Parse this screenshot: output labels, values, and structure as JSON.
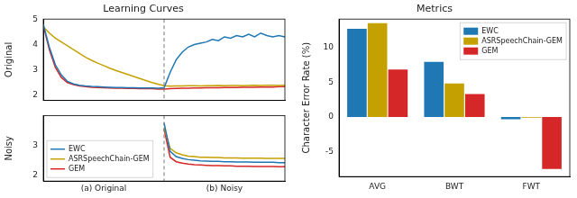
{
  "chart_data": [
    {
      "type": "line",
      "title": "Learning Curves",
      "y_label": "Original",
      "x": [
        0,
        5,
        10,
        15,
        20,
        25,
        30,
        35,
        40,
        45,
        50,
        55,
        60,
        65,
        70,
        75,
        80,
        85,
        90,
        95,
        100,
        105,
        110,
        115,
        120,
        125,
        130,
        135,
        140,
        145,
        150,
        155,
        160,
        165,
        170,
        175,
        180,
        185,
        190,
        195,
        200
      ],
      "xlim": [
        0,
        200
      ],
      "ylim": [
        1.8,
        5.0
      ],
      "yticks": [
        2,
        3,
        4,
        5
      ],
      "vline": 100,
      "tick_labels": "y",
      "grid": false,
      "series": [
        {
          "name": "EWC",
          "color": "#1f77b4",
          "values": [
            4.8,
            3.9,
            3.2,
            2.8,
            2.55,
            2.45,
            2.4,
            2.37,
            2.35,
            2.34,
            2.33,
            2.32,
            2.31,
            2.31,
            2.3,
            2.3,
            2.29,
            2.29,
            2.29,
            2.28,
            2.3,
            2.9,
            3.4,
            3.7,
            3.9,
            4.0,
            4.05,
            4.1,
            4.2,
            4.15,
            4.3,
            4.25,
            4.35,
            4.3,
            4.4,
            4.3,
            4.45,
            4.35,
            4.3,
            4.35,
            4.3
          ]
        },
        {
          "name": "ASRSpeechChain-GEM",
          "color": "#c5a100",
          "values": [
            4.7,
            4.45,
            4.25,
            4.1,
            3.95,
            3.8,
            3.65,
            3.5,
            3.38,
            3.27,
            3.17,
            3.07,
            2.98,
            2.9,
            2.82,
            2.74,
            2.66,
            2.58,
            2.5,
            2.44,
            2.38,
            2.36,
            2.37,
            2.37,
            2.38,
            2.38,
            2.37,
            2.38,
            2.38,
            2.39,
            2.38,
            2.39,
            2.39,
            2.38,
            2.39,
            2.4,
            2.39,
            2.4,
            2.4,
            2.39,
            2.4
          ]
        },
        {
          "name": "GEM",
          "color": "#d62728",
          "values": [
            4.75,
            3.8,
            3.1,
            2.7,
            2.5,
            2.42,
            2.37,
            2.34,
            2.32,
            2.31,
            2.3,
            2.29,
            2.28,
            2.28,
            2.27,
            2.27,
            2.26,
            2.26,
            2.26,
            2.25,
            2.25,
            2.26,
            2.27,
            2.28,
            2.28,
            2.29,
            2.29,
            2.3,
            2.3,
            2.3,
            2.31,
            2.31,
            2.31,
            2.32,
            2.32,
            2.32,
            2.33,
            2.33,
            2.33,
            2.34,
            2.34
          ]
        }
      ]
    },
    {
      "type": "line",
      "y_label": "Noisy",
      "x": [
        100,
        105,
        110,
        115,
        120,
        125,
        130,
        135,
        140,
        145,
        150,
        155,
        160,
        165,
        170,
        175,
        180,
        185,
        190,
        195,
        200
      ],
      "xlim": [
        0,
        200
      ],
      "xticks": [
        {
          "value": 50,
          "label": "(a) Original"
        },
        {
          "value": 150,
          "label": "(b) Noisy"
        }
      ],
      "ylim": [
        1.8,
        4.0
      ],
      "yticks": [
        2,
        3
      ],
      "vline": 100,
      "grid": false,
      "legend": "lower left",
      "series": [
        {
          "name": "EWC",
          "color": "#1f77b4",
          "values": [
            3.75,
            2.8,
            2.62,
            2.56,
            2.52,
            2.5,
            2.48,
            2.47,
            2.46,
            2.46,
            2.45,
            2.45,
            2.44,
            2.44,
            2.44,
            2.43,
            2.43,
            2.43,
            2.43,
            2.42,
            2.42
          ]
        },
        {
          "name": "ASRSpeechChain-GEM",
          "color": "#c5a100",
          "values": [
            3.6,
            2.9,
            2.75,
            2.68,
            2.64,
            2.62,
            2.6,
            2.6,
            2.59,
            2.59,
            2.58,
            2.58,
            2.58,
            2.57,
            2.57,
            2.57,
            2.57,
            2.56,
            2.56,
            2.56,
            2.56
          ]
        },
        {
          "name": "GEM",
          "color": "#d62728",
          "values": [
            3.55,
            2.6,
            2.45,
            2.4,
            2.37,
            2.35,
            2.34,
            2.33,
            2.32,
            2.32,
            2.31,
            2.31,
            2.3,
            2.3,
            2.3,
            2.29,
            2.29,
            2.29,
            2.29,
            2.28,
            2.28
          ]
        }
      ]
    },
    {
      "type": "bar",
      "title": "Metrics",
      "y_label": "Character Error Rate (%)",
      "categories": [
        "AVG",
        "BWT",
        "FWT"
      ],
      "ylim": [
        -8.5,
        14
      ],
      "yticks": [
        -5,
        0,
        5,
        10
      ],
      "grid": false,
      "legend": "upper right",
      "series": [
        {
          "name": "EWC",
          "color": "#1f77b4",
          "values": [
            12.6,
            7.9,
            -0.3
          ]
        },
        {
          "name": "ASRSpeechChain-GEM",
          "color": "#c5a100",
          "values": [
            13.4,
            4.8,
            -0.1
          ]
        },
        {
          "name": "GEM",
          "color": "#d62728",
          "values": [
            6.8,
            3.3,
            -7.4
          ]
        }
      ]
    }
  ]
}
